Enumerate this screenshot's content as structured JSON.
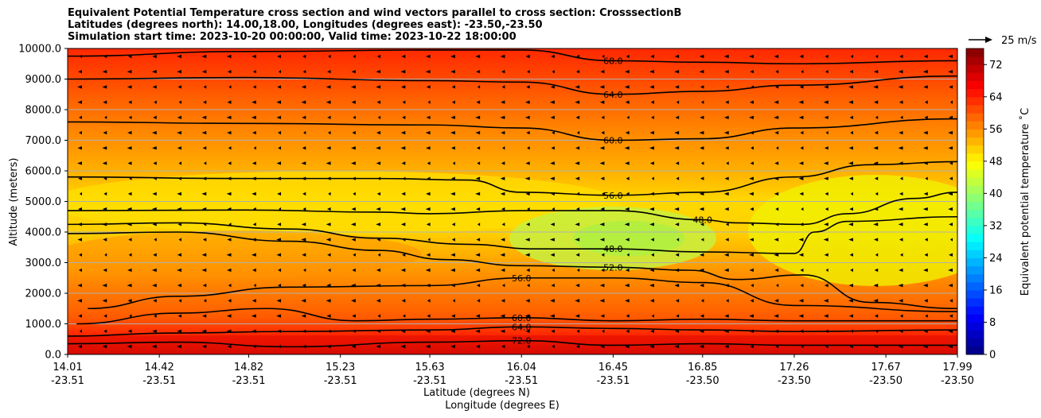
{
  "title_lines": [
    "Equivalent Potential Temperature cross section and wind vectors parallel to cross section: CrosssectionB",
    "Latitudes (degrees north): 14.00,18.00, Longitudes (degrees east): -23.50,-23.50",
    "Simulation start time: 2023-10-20 00:00:00, Valid time: 2023-10-22 18:00:00"
  ],
  "chart_data": {
    "type": "heatmap",
    "xlabel_lines": [
      "Latitude (degrees N)",
      "Longitude (degrees E)"
    ],
    "ylabel": "Altitude (meters)",
    "colorbar_label": "Equivalent potential temperature ˚C",
    "xlim": [
      14.01,
      17.99
    ],
    "ylim": [
      0,
      10000
    ],
    "x_ticks": [
      {
        "lat": "14.01",
        "lon": "-23.51",
        "value": 14.01
      },
      {
        "lat": "14.42",
        "lon": "-23.51",
        "value": 14.42
      },
      {
        "lat": "14.82",
        "lon": "-23.51",
        "value": 14.82
      },
      {
        "lat": "15.23",
        "lon": "-23.51",
        "value": 15.23
      },
      {
        "lat": "15.63",
        "lon": "-23.51",
        "value": 15.63
      },
      {
        "lat": "16.04",
        "lon": "-23.51",
        "value": 16.04
      },
      {
        "lat": "16.45",
        "lon": "-23.51",
        "value": 16.45
      },
      {
        "lat": "16.85",
        "lon": "-23.50",
        "value": 16.85
      },
      {
        "lat": "17.26",
        "lon": "-23.50",
        "value": 17.26
      },
      {
        "lat": "17.67",
        "lon": "-23.50",
        "value": 17.67
      },
      {
        "lat": "17.99",
        "lon": "-23.50",
        "value": 17.99
      }
    ],
    "y_ticks": [
      {
        "label": "0.0",
        "value": 0
      },
      {
        "label": "1000.0",
        "value": 1000
      },
      {
        "label": "2000.0",
        "value": 2000
      },
      {
        "label": "3000.0",
        "value": 3000
      },
      {
        "label": "4000.0",
        "value": 4000
      },
      {
        "label": "5000.0",
        "value": 5000
      },
      {
        "label": "6000.0",
        "value": 6000
      },
      {
        "label": "7000.0",
        "value": 7000
      },
      {
        "label": "8000.0",
        "value": 8000
      },
      {
        "label": "9000.0",
        "value": 9000
      },
      {
        "label": "10000.0",
        "value": 10000
      }
    ],
    "grid": "horizontal",
    "colorbar": {
      "min": 0,
      "max": 76,
      "tick_labels": [
        "0",
        "8",
        "16",
        "24",
        "32",
        "40",
        "48",
        "56",
        "64",
        "72"
      ],
      "tick_values": [
        0,
        8,
        16,
        24,
        32,
        40,
        48,
        56,
        64,
        72
      ]
    },
    "quiver_key": {
      "label": "25 m/s",
      "value": 25
    },
    "contours": [
      {
        "level": 48.0,
        "label": "48.0",
        "points": [
          [
            14.01,
            4700
          ],
          [
            14.8,
            4720
          ],
          [
            15.4,
            4650
          ],
          [
            15.63,
            4600
          ],
          [
            16.04,
            4700
          ],
          [
            16.45,
            4700
          ],
          [
            16.85,
            4400
          ],
          [
            17.0,
            4300
          ],
          [
            17.3,
            4250
          ],
          [
            17.5,
            4600
          ],
          [
            17.8,
            5100
          ],
          [
            17.99,
            5300
          ]
        ]
      },
      {
        "level": 48.0,
        "label": "48.0",
        "points": [
          [
            14.01,
            4250
          ],
          [
            14.5,
            4300
          ],
          [
            15.0,
            4100
          ],
          [
            15.4,
            3800
          ],
          [
            15.8,
            3600
          ],
          [
            16.1,
            3450
          ],
          [
            16.45,
            3450
          ],
          [
            16.85,
            3350
          ],
          [
            17.26,
            3300
          ],
          [
            17.35,
            4000
          ],
          [
            17.5,
            4350
          ],
          [
            17.99,
            4500
          ]
        ]
      },
      {
        "level": 52.0,
        "label": "52.0",
        "points": [
          [
            14.01,
            3950
          ],
          [
            14.5,
            4000
          ],
          [
            15.0,
            3700
          ],
          [
            15.4,
            3400
          ],
          [
            15.7,
            3100
          ],
          [
            16.04,
            2900
          ],
          [
            16.45,
            2850
          ],
          [
            16.8,
            2750
          ],
          [
            17.0,
            2450
          ],
          [
            17.3,
            2600
          ],
          [
            17.6,
            1700
          ],
          [
            17.99,
            1500
          ]
        ]
      },
      {
        "level": 56.0,
        "label": "56.0",
        "points": [
          [
            14.01,
            5800
          ],
          [
            14.8,
            5750
          ],
          [
            15.4,
            5750
          ],
          [
            15.8,
            5700
          ],
          [
            16.04,
            5300
          ],
          [
            16.45,
            5200
          ],
          [
            16.85,
            5300
          ],
          [
            17.26,
            5800
          ],
          [
            17.6,
            6200
          ],
          [
            17.99,
            6300
          ]
        ]
      },
      {
        "level": 56.0,
        "label": "56.0",
        "points": [
          [
            14.1,
            1500
          ],
          [
            14.5,
            1900
          ],
          [
            15.0,
            2200
          ],
          [
            15.63,
            2250
          ],
          [
            16.04,
            2500
          ],
          [
            16.45,
            2500
          ],
          [
            16.85,
            2350
          ],
          [
            17.26,
            1600
          ],
          [
            17.99,
            1400
          ]
        ]
      },
      {
        "level": 60.0,
        "label": "60.0",
        "points": [
          [
            14.01,
            7600
          ],
          [
            14.8,
            7550
          ],
          [
            15.63,
            7500
          ],
          [
            16.04,
            7400
          ],
          [
            16.45,
            7000
          ],
          [
            16.85,
            7050
          ],
          [
            17.26,
            7400
          ],
          [
            17.99,
            7700
          ]
        ]
      },
      {
        "level": 60.0,
        "label": "60.0",
        "points": [
          [
            14.05,
            1000
          ],
          [
            14.5,
            1350
          ],
          [
            14.9,
            1500
          ],
          [
            15.3,
            1100
          ],
          [
            15.63,
            1150
          ],
          [
            16.04,
            1200
          ],
          [
            16.45,
            1100
          ],
          [
            16.85,
            1150
          ],
          [
            17.26,
            1100
          ],
          [
            17.99,
            1100
          ]
        ]
      },
      {
        "level": 64.0,
        "label": "64.0",
        "points": [
          [
            14.01,
            9000
          ],
          [
            14.8,
            9050
          ],
          [
            15.63,
            8950
          ],
          [
            16.04,
            8900
          ],
          [
            16.45,
            8500
          ],
          [
            16.85,
            8600
          ],
          [
            17.26,
            8800
          ],
          [
            17.99,
            9100
          ]
        ]
      },
      {
        "level": 64.0,
        "label": "64.0",
        "points": [
          [
            14.01,
            600
          ],
          [
            14.5,
            700
          ],
          [
            15.0,
            750
          ],
          [
            15.63,
            800
          ],
          [
            16.04,
            900
          ],
          [
            16.45,
            850
          ],
          [
            16.85,
            800
          ],
          [
            17.26,
            750
          ],
          [
            17.99,
            800
          ]
        ]
      },
      {
        "level": 68.0,
        "label": "68.0",
        "points": [
          [
            14.01,
            9750
          ],
          [
            14.8,
            9900
          ],
          [
            15.63,
            9950
          ],
          [
            16.04,
            9950
          ],
          [
            16.45,
            9600
          ],
          [
            16.85,
            9550
          ],
          [
            17.26,
            9500
          ],
          [
            17.99,
            9600
          ]
        ]
      },
      {
        "level": 72.0,
        "label": "72.0",
        "points": [
          [
            14.01,
            350
          ],
          [
            14.5,
            400
          ],
          [
            15.0,
            250
          ],
          [
            15.63,
            400
          ],
          [
            16.04,
            450
          ],
          [
            16.45,
            300
          ],
          [
            16.85,
            350
          ],
          [
            17.26,
            300
          ],
          [
            17.99,
            300
          ]
        ]
      }
    ]
  }
}
